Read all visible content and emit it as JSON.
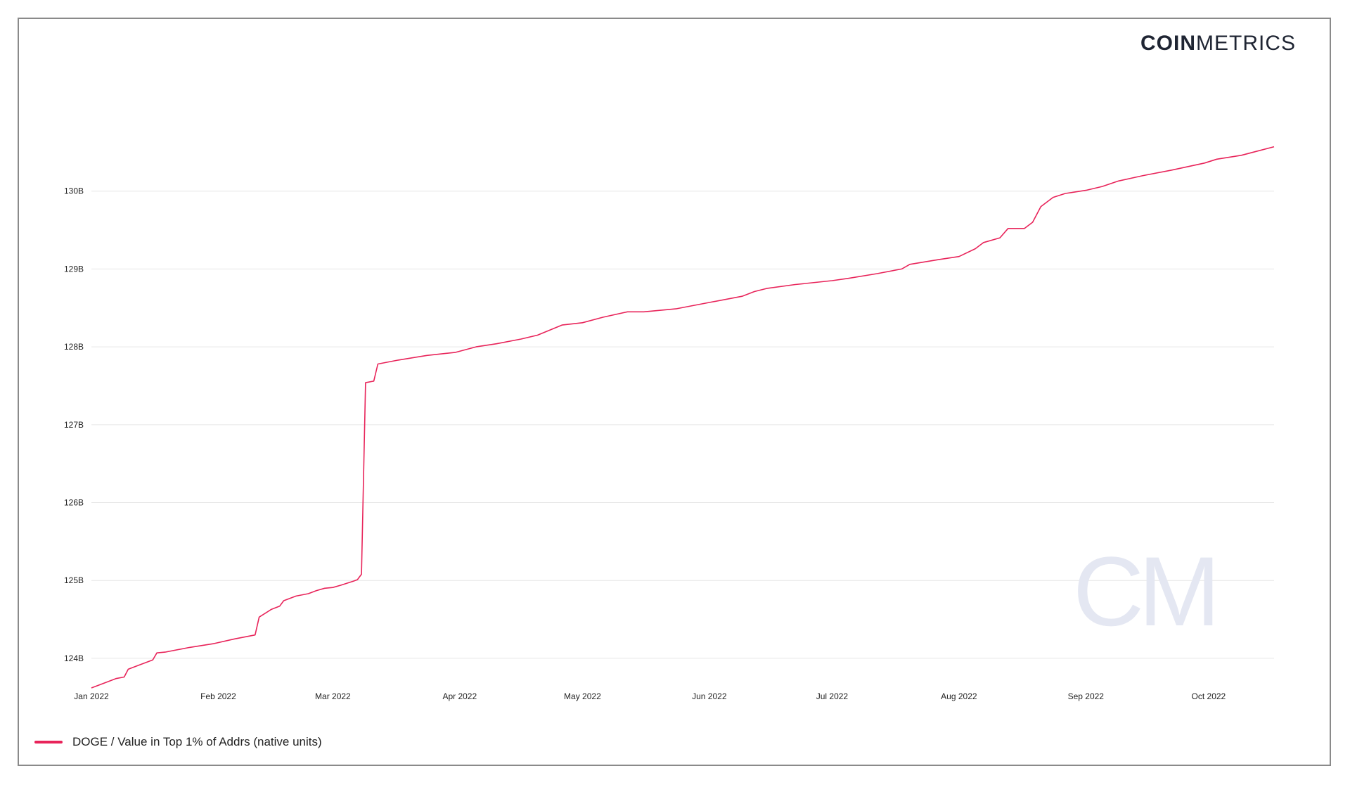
{
  "brand": {
    "bold": "COIN",
    "light": "METRICS",
    "watermark": "CM"
  },
  "colors": {
    "line": "#e8245a",
    "grid": "#e6e6e6",
    "frame": "#8a8a8a",
    "watermark": "#e4e7f2"
  },
  "chart_data": {
    "type": "line",
    "title": "",
    "xlabel": "",
    "ylabel": "",
    "y_ticks": [
      124000000000,
      125000000000,
      126000000000,
      127000000000,
      128000000000,
      129000000000,
      130000000000
    ],
    "y_tick_labels": [
      "124B",
      "125B",
      "126B",
      "127B",
      "128B",
      "129B",
      "130B"
    ],
    "ylim": [
      123620000000,
      131560000000
    ],
    "x_ticks": [
      "2022-01-01",
      "2022-02-01",
      "2022-03-01",
      "2022-04-01",
      "2022-05-01",
      "2022-06-01",
      "2022-07-01",
      "2022-08-01",
      "2022-09-01",
      "2022-10-01"
    ],
    "x_tick_labels": [
      "Jan 2022",
      "Feb 2022",
      "Mar 2022",
      "Apr 2022",
      "May 2022",
      "Jun 2022",
      "Jul 2022",
      "Aug 2022",
      "Sep 2022",
      "Oct 2022"
    ],
    "xlim": [
      "2022-01-01",
      "2022-10-17"
    ],
    "grid": true,
    "legend_position": "bottom-left",
    "series": [
      {
        "name": "DOGE / Value in Top 1% of Addrs (native units)",
        "points": [
          [
            "2022-01-01",
            123.62
          ],
          [
            "2022-01-04",
            123.68
          ],
          [
            "2022-01-07",
            123.74
          ],
          [
            "2022-01-09",
            123.76
          ],
          [
            "2022-01-10",
            123.86
          ],
          [
            "2022-01-13",
            123.92
          ],
          [
            "2022-01-15",
            123.96
          ],
          [
            "2022-01-16",
            123.98
          ],
          [
            "2022-01-17",
            124.07
          ],
          [
            "2022-01-19",
            124.08
          ],
          [
            "2022-01-25",
            124.14
          ],
          [
            "2022-01-31",
            124.19
          ],
          [
            "2022-02-05",
            124.25
          ],
          [
            "2022-02-10",
            124.3
          ],
          [
            "2022-02-11",
            124.53
          ],
          [
            "2022-02-14",
            124.63
          ],
          [
            "2022-02-16",
            124.67
          ],
          [
            "2022-02-17",
            124.74
          ],
          [
            "2022-02-20",
            124.8
          ],
          [
            "2022-02-23",
            124.83
          ],
          [
            "2022-02-25",
            124.87
          ],
          [
            "2022-02-27",
            124.9
          ],
          [
            "2022-03-01",
            124.91
          ],
          [
            "2022-03-03",
            124.94
          ],
          [
            "2022-03-06",
            124.99
          ],
          [
            "2022-03-07",
            125.01
          ],
          [
            "2022-03-08",
            125.08
          ],
          [
            "2022-03-09",
            127.54
          ],
          [
            "2022-03-11",
            127.56
          ],
          [
            "2022-03-12",
            127.78
          ],
          [
            "2022-03-17",
            127.83
          ],
          [
            "2022-03-24",
            127.89
          ],
          [
            "2022-03-31",
            127.93
          ],
          [
            "2022-04-05",
            128.0
          ],
          [
            "2022-04-10",
            128.04
          ],
          [
            "2022-04-16",
            128.1
          ],
          [
            "2022-04-20",
            128.15
          ],
          [
            "2022-04-26",
            128.28
          ],
          [
            "2022-05-01",
            128.31
          ],
          [
            "2022-05-06",
            128.38
          ],
          [
            "2022-05-12",
            128.45
          ],
          [
            "2022-05-16",
            128.45
          ],
          [
            "2022-05-24",
            128.49
          ],
          [
            "2022-06-01",
            128.57
          ],
          [
            "2022-06-09",
            128.65
          ],
          [
            "2022-06-12",
            128.71
          ],
          [
            "2022-06-15",
            128.75
          ],
          [
            "2022-06-22",
            128.8
          ],
          [
            "2022-07-01",
            128.85
          ],
          [
            "2022-07-05",
            128.88
          ],
          [
            "2022-07-12",
            128.94
          ],
          [
            "2022-07-18",
            129.0
          ],
          [
            "2022-07-20",
            129.06
          ],
          [
            "2022-07-27",
            129.12
          ],
          [
            "2022-08-01",
            129.16
          ],
          [
            "2022-08-05",
            129.26
          ],
          [
            "2022-08-07",
            129.34
          ],
          [
            "2022-08-11",
            129.4
          ],
          [
            "2022-08-13",
            129.52
          ],
          [
            "2022-08-17",
            129.52
          ],
          [
            "2022-08-19",
            129.6
          ],
          [
            "2022-08-21",
            129.8
          ],
          [
            "2022-08-24",
            129.92
          ],
          [
            "2022-08-27",
            129.97
          ],
          [
            "2022-09-01",
            130.01
          ],
          [
            "2022-09-05",
            130.06
          ],
          [
            "2022-09-09",
            130.13
          ],
          [
            "2022-09-15",
            130.2
          ],
          [
            "2022-09-22",
            130.27
          ],
          [
            "2022-09-30",
            130.36
          ],
          [
            "2022-10-03",
            130.41
          ],
          [
            "2022-10-09",
            130.46
          ],
          [
            "2022-10-17",
            130.57
          ]
        ]
      }
    ]
  }
}
